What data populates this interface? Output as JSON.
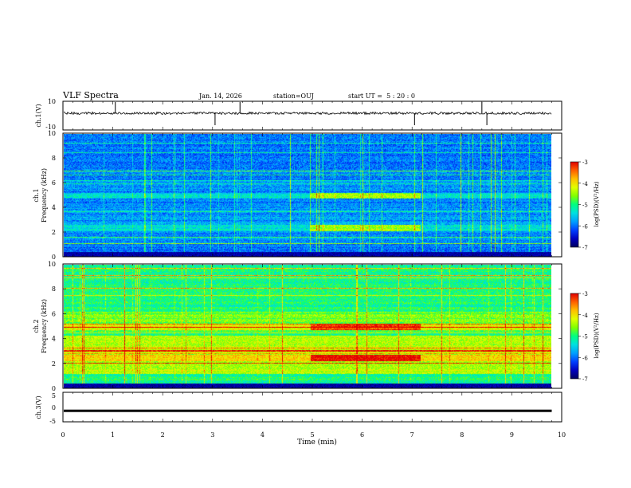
{
  "header": {
    "title": "VLF Spectra",
    "date": "Jan. 14, 2026",
    "station": "station=OUJ",
    "start": "start UT =  5 : 20 : 0"
  },
  "colors": {
    "spectrogram_scale": [
      "#000060",
      "#0000c0",
      "#0040ff",
      "#00a0ff",
      "#00e0e0",
      "#00ff80",
      "#80ff00",
      "#e0ff00",
      "#ffc000",
      "#ff6000",
      "#e00000",
      "#ffffff"
    ]
  },
  "chart_data": [
    {
      "type": "line",
      "panel": "waveform ch1",
      "ylabel": "ch.1(V)",
      "ylim": [
        -10,
        10
      ],
      "yticks": [
        "10",
        "-10"
      ],
      "baseline": 0,
      "spikes_min": [
        1.05,
        3.05,
        3.55,
        7.05,
        8.4,
        8.5
      ]
    },
    {
      "type": "heatmap",
      "panel": "spectrogram ch1",
      "ylabel": "ch.1\nFrequency (kHz)",
      "xlim": [
        0,
        10
      ],
      "ylim": [
        0,
        10
      ],
      "yticks": [
        "0",
        "2",
        "4",
        "6",
        "8",
        "10"
      ],
      "bands_khz": [
        2.4,
        5.0
      ],
      "enhanced_interval_min": [
        4.95,
        7.15
      ],
      "colorbar": {
        "label": "log(PSD)(V²/Hz)",
        "range": [
          -7,
          -3
        ],
        "ticks": [
          "-3",
          "-4",
          "-5",
          "-6",
          "-7"
        ]
      }
    },
    {
      "type": "heatmap",
      "panel": "spectrogram ch2",
      "ylabel": "ch.2\nFrequency (kHz)",
      "xlim": [
        0,
        10
      ],
      "ylim": [
        0,
        10
      ],
      "yticks": [
        "0",
        "2",
        "4",
        "6",
        "8",
        "10"
      ],
      "bands_khz": [
        2.5,
        5.0
      ],
      "enhanced_interval_min": [
        4.95,
        7.15
      ],
      "colorbar": {
        "label": "log(PSD)(V²/Hz)",
        "range": [
          -7,
          -3
        ],
        "ticks": [
          "-3",
          "-4",
          "-5",
          "-6",
          "-7"
        ]
      }
    },
    {
      "type": "line",
      "panel": "waveform ch3",
      "ylabel": "ch.3(V)",
      "ylim": [
        -5,
        5
      ],
      "yticks": [
        "5",
        "0",
        "-5"
      ],
      "level": -1.3
    }
  ],
  "xaxis": {
    "label": "Time (min)",
    "ticks": [
      "0",
      "1",
      "2",
      "3",
      "4",
      "5",
      "6",
      "7",
      "8",
      "9",
      "10"
    ],
    "data_end_min": 9.8
  }
}
